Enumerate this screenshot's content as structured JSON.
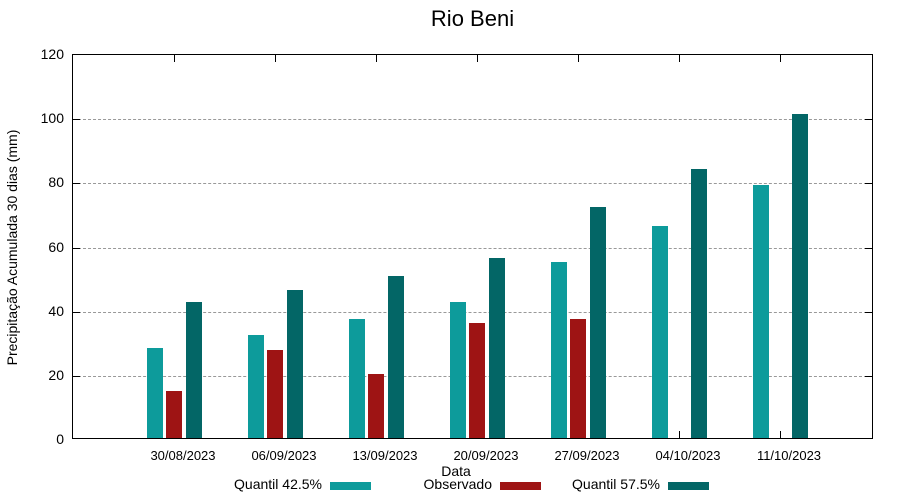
{
  "title": "Rio Beni",
  "colors": {
    "quantil425": "#0d9b9b",
    "observado": "#9e1414",
    "quantil575": "#036666",
    "grid": "#999999",
    "axis": "#000000"
  },
  "chart_data": {
    "type": "bar",
    "title": "Rio Beni",
    "xlabel": "Data",
    "ylabel": "Precipitação Acumulada 30 dias (mm)",
    "ylim": [
      0,
      120
    ],
    "yticks": [
      0,
      20,
      40,
      60,
      80,
      100,
      120
    ],
    "grid": true,
    "legend_position": "bottom",
    "categories": [
      "30/08/2023",
      "06/09/2023",
      "13/09/2023",
      "20/09/2023",
      "27/09/2023",
      "04/10/2023",
      "11/10/2023"
    ],
    "series": [
      {
        "name": "Quantil 42.5%",
        "color_key": "quantil425",
        "values": [
          28,
          32,
          37,
          42.5,
          55,
          66,
          79
        ]
      },
      {
        "name": "Observado",
        "color_key": "observado",
        "values": [
          14.5,
          27.5,
          20,
          36,
          37,
          null,
          null
        ]
      },
      {
        "name": "Quantil 57.5%",
        "color_key": "quantil575",
        "values": [
          42.5,
          46,
          50.5,
          56,
          72,
          84,
          101
        ]
      }
    ]
  }
}
